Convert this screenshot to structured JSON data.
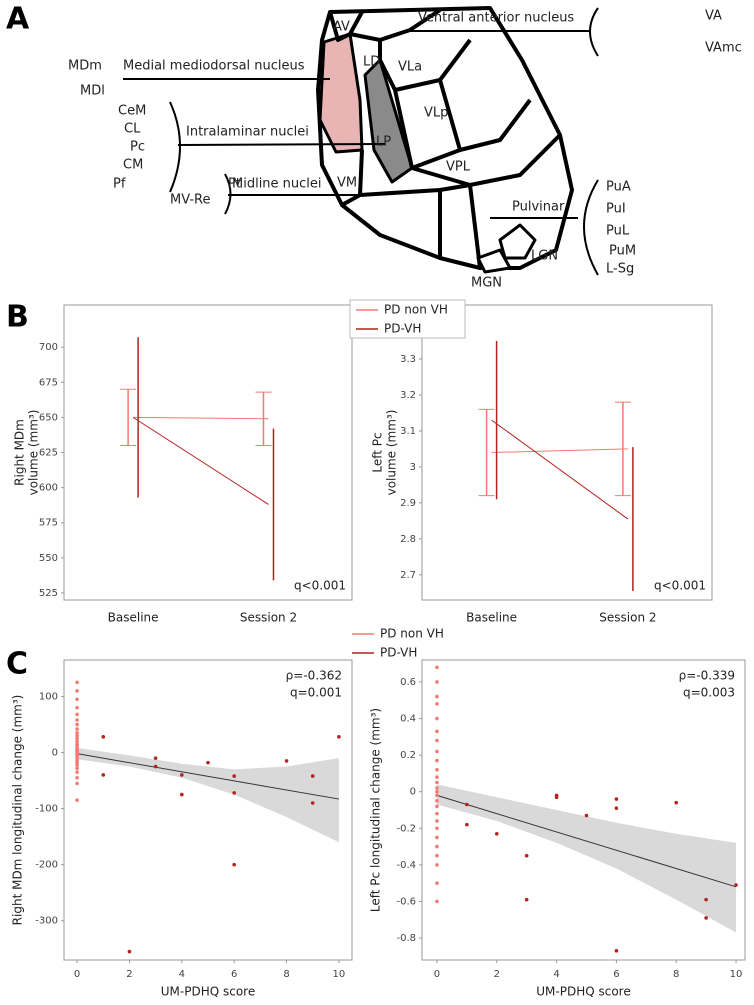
{
  "panel_labels": [
    "A",
    "B",
    "C"
  ],
  "diagram": {
    "labels": [
      "AV",
      "Ventral anterior nucleus",
      "VA",
      "VAmc",
      "MDm",
      "MDl",
      "Medial mediodorsal nucleus",
      "LD",
      "VLa",
      "VLp",
      "CeM",
      "CL",
      "Pc",
      "CM",
      "Pf",
      "Intralaminar nuclei",
      "LP",
      "VPL",
      "Pt",
      "MV-Re",
      "Midline nuclei",
      "VM",
      "Pulvinar",
      "PuA",
      "PuI",
      "PuL",
      "PuM",
      "L-Sg",
      "LGN",
      "MGN"
    ]
  },
  "chart_data": [
    {
      "type": "errorline",
      "ylabel": [
        "Right MDm",
        "volume (mm³)"
      ],
      "categories": [
        "Baseline",
        "Session 2"
      ],
      "ylim": [
        520,
        730
      ],
      "yticks": [
        525,
        550,
        575,
        600,
        625,
        650,
        675,
        700
      ],
      "annotation": "q<0.001",
      "series": [
        {
          "name": "PD non VH",
          "color": "#f07b72",
          "values": [
            650,
            649
          ],
          "errors": [
            20,
            19
          ]
        },
        {
          "name": "PD-VH",
          "color": "#b3221c",
          "values": [
            650,
            588
          ],
          "errors": [
            57,
            54
          ]
        }
      ]
    },
    {
      "type": "errorline",
      "ylabel": [
        "Left Pc",
        "volume (mm³)"
      ],
      "categories": [
        "Baseline",
        "Session 2"
      ],
      "ylim": [
        2.63,
        3.45
      ],
      "yticks": [
        2.7,
        2.8,
        2.9,
        3.0,
        3.1,
        3.2,
        3.3
      ],
      "annotation": "q<0.001",
      "series": [
        {
          "color": "#f07b72",
          "values": [
            3.04,
            3.05
          ],
          "errors": [
            0.12,
            0.13
          ]
        },
        {
          "color": "#b3221c",
          "values": [
            3.13,
            2.855
          ],
          "errors": [
            0.22,
            0.2
          ]
        }
      ]
    },
    {
      "type": "scatter",
      "ylabel": "Right MDm longitudinal change (mm³)",
      "xlabel": "UM-PDHQ score",
      "xlim": [
        -0.5,
        10.5
      ],
      "xticks": [
        0,
        2,
        4,
        6,
        8,
        10
      ],
      "ylim": [
        -370,
        165
      ],
      "yticks": [
        100,
        0,
        -100,
        -200,
        -300
      ],
      "annotations": [
        "ρ=-0.362",
        "q=0.001"
      ],
      "series": [
        {
          "name": "PD non VH",
          "color": "#f07b72",
          "x": [
            0,
            0,
            0,
            0,
            0,
            0,
            0,
            0,
            0,
            0,
            0,
            0,
            0,
            0,
            0,
            0,
            0,
            0,
            0,
            0,
            0,
            0,
            0,
            0,
            0,
            0,
            0,
            0,
            0
          ],
          "y": [
            125,
            110,
            95,
            80,
            68,
            58,
            50,
            42,
            35,
            30,
            25,
            20,
            15,
            12,
            8,
            5,
            2,
            0,
            -3,
            -6,
            -10,
            -14,
            -18,
            -22,
            -28,
            -35,
            -45,
            -55,
            -85
          ]
        },
        {
          "name": "PD-VH",
          "color": "#b3221c",
          "x": [
            1,
            1,
            2,
            3,
            3,
            4,
            4,
            5,
            6,
            6,
            6,
            8,
            9,
            9,
            10
          ],
          "y": [
            28,
            -40,
            -355,
            -10,
            -25,
            -40,
            -75,
            -18,
            -42,
            -72,
            -200,
            -15,
            -42,
            -90,
            28
          ]
        }
      ],
      "fit": {
        "x": [
          0,
          10
        ],
        "y": [
          -2,
          -83
        ]
      },
      "ci": {
        "x": [
          0,
          2,
          4,
          6,
          8,
          10
        ],
        "lower": [
          -12,
          -25,
          -45,
          -75,
          -115,
          -160
        ],
        "upper": [
          8,
          -5,
          -20,
          -30,
          -25,
          -10
        ]
      }
    },
    {
      "type": "scatter",
      "ylabel": "Left Pc longitudinal change (mm³)",
      "xlabel": "UM-PDHQ score",
      "xlim": [
        -0.5,
        10.3
      ],
      "xticks": [
        0,
        2,
        4,
        6,
        8,
        10
      ],
      "ylim": [
        -0.92,
        0.72
      ],
      "yticks": [
        0.6,
        0.4,
        0.2,
        0.0,
        -0.2,
        -0.4,
        -0.6,
        -0.8
      ],
      "annotations": [
        "ρ=-0.339",
        "q=0.003"
      ],
      "series": [
        {
          "color": "#f07b72",
          "x": [
            0,
            0,
            0,
            0,
            0,
            0,
            0,
            0,
            0,
            0,
            0,
            0,
            0,
            0,
            0,
            0,
            0,
            0,
            0,
            0,
            0,
            0,
            0,
            0,
            0,
            0
          ],
          "y": [
            0.68,
            0.6,
            0.52,
            0.48,
            0.4,
            0.33,
            0.28,
            0.22,
            0.17,
            0.12,
            0.08,
            0.05,
            0.02,
            0,
            -0.02,
            -0.05,
            -0.08,
            -0.12,
            -0.16,
            -0.2,
            -0.25,
            -0.3,
            -0.35,
            -0.4,
            -0.5,
            -0.6
          ]
        },
        {
          "color": "#b3221c",
          "x": [
            1,
            1,
            2,
            3,
            3,
            4,
            4,
            5,
            6,
            6,
            6,
            8,
            9,
            9,
            10
          ],
          "y": [
            -0.07,
            -0.18,
            -0.23,
            -0.35,
            -0.59,
            -0.02,
            -0.03,
            -0.13,
            -0.04,
            -0.09,
            -0.87,
            -0.06,
            -0.59,
            -0.69,
            -0.51
          ]
        }
      ],
      "fit": {
        "x": [
          0,
          10
        ],
        "y": [
          -0.02,
          -0.52
        ]
      },
      "ci": {
        "x": [
          0,
          2,
          4,
          6,
          8,
          10
        ],
        "lower": [
          -0.07,
          -0.16,
          -0.28,
          -0.42,
          -0.59,
          -0.77
        ],
        "upper": [
          0.04,
          -0.03,
          -0.1,
          -0.17,
          -0.23,
          -0.28
        ]
      }
    }
  ]
}
